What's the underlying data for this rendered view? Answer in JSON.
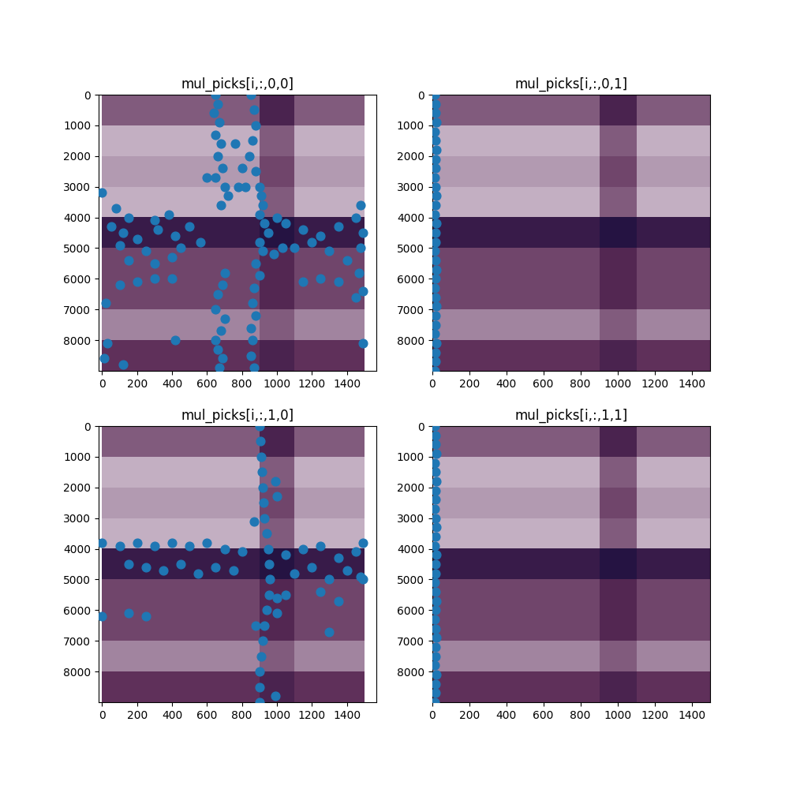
{
  "chart_data": [
    {
      "type": "scatter",
      "title": "mul_picks[i,:,0,0]",
      "color": "#1f77b4",
      "marker": "o",
      "x": [
        650,
        660,
        640,
        670,
        650,
        680,
        660,
        690,
        650,
        700,
        720,
        680,
        700,
        690,
        660,
        650,
        700,
        680,
        650,
        660,
        690,
        670,
        850,
        870,
        880,
        860,
        840,
        880,
        900,
        910,
        920,
        900,
        930,
        950,
        900,
        920,
        880,
        900,
        870,
        860,
        880,
        850,
        860,
        850,
        870,
        760,
        780,
        820,
        600,
        800,
        0,
        80,
        150,
        300,
        380,
        50,
        120,
        200,
        320,
        420,
        500,
        560,
        450,
        250,
        100,
        400,
        150,
        300,
        1050,
        1150,
        1250,
        1350,
        1450,
        1480,
        1490,
        1480,
        1470,
        1490,
        1200,
        1100,
        1300,
        1400,
        1150,
        1250,
        1350,
        1450,
        200,
        300,
        100,
        400,
        20,
        30,
        10,
        120,
        420,
        1490,
        1030,
        980,
        1000
      ],
      "y": [
        0,
        300,
        600,
        900,
        1300,
        1600,
        2000,
        2400,
        2700,
        3000,
        3300,
        3600,
        5800,
        6200,
        6500,
        7000,
        7300,
        7700,
        8000,
        8300,
        8600,
        8900,
        0,
        500,
        1000,
        1500,
        2000,
        2500,
        3000,
        3300,
        3600,
        3900,
        4200,
        4500,
        4800,
        5100,
        5500,
        5900,
        6300,
        6800,
        7200,
        7600,
        8000,
        8500,
        8900,
        1600,
        3000,
        3000,
        2700,
        2400,
        3200,
        3700,
        4000,
        4100,
        3900,
        4300,
        4500,
        4700,
        4400,
        4600,
        4300,
        4800,
        5000,
        5100,
        4900,
        5300,
        5400,
        5500,
        4200,
        4400,
        4600,
        4300,
        4000,
        3600,
        4500,
        5000,
        5800,
        6400,
        4800,
        5000,
        5100,
        5400,
        6100,
        6000,
        6100,
        6600,
        6100,
        6000,
        6200,
        6000,
        6800,
        8100,
        8600,
        8800,
        8000,
        8100,
        5000,
        5200,
        4000
      ],
      "xlim": [
        -20,
        1570
      ],
      "ylim": [
        9000,
        0
      ],
      "xticks": [
        0,
        200,
        400,
        600,
        800,
        1000,
        1200,
        1400
      ],
      "yticks": [
        0,
        1000,
        2000,
        3000,
        4000,
        5000,
        6000,
        7000,
        8000
      ],
      "cells_x": [
        0,
        1500
      ],
      "cells_y": [
        0,
        9000
      ],
      "cells_range": [
        0,
        1
      ],
      "cells": [
        [
          0.55,
          0.55,
          0.55,
          0.55,
          0.55,
          0.55,
          0.55,
          0.55,
          0.55,
          0.75,
          0.75,
          0.55,
          0.55,
          0.55,
          0.55
        ],
        [
          0.35,
          0.35,
          0.35,
          0.35,
          0.35,
          0.35,
          0.35,
          0.35,
          0.35,
          0.55,
          0.55,
          0.35,
          0.35,
          0.35,
          0.35
        ],
        [
          0.4,
          0.4,
          0.4,
          0.4,
          0.4,
          0.4,
          0.4,
          0.4,
          0.4,
          0.6,
          0.6,
          0.4,
          0.4,
          0.4,
          0.4
        ],
        [
          0.35,
          0.35,
          0.35,
          0.35,
          0.35,
          0.35,
          0.35,
          0.35,
          0.35,
          0.55,
          0.55,
          0.35,
          0.35,
          0.35,
          0.35
        ],
        [
          0.85,
          0.85,
          0.85,
          0.85,
          0.85,
          0.85,
          0.85,
          0.85,
          0.85,
          0.95,
          0.95,
          0.85,
          0.85,
          0.85,
          0.85
        ],
        [
          0.6,
          0.6,
          0.6,
          0.6,
          0.6,
          0.6,
          0.6,
          0.6,
          0.6,
          0.7,
          0.7,
          0.6,
          0.6,
          0.6,
          0.6
        ],
        [
          0.6,
          0.6,
          0.6,
          0.6,
          0.6,
          0.6,
          0.6,
          0.6,
          0.6,
          0.7,
          0.7,
          0.6,
          0.6,
          0.6,
          0.6
        ],
        [
          0.45,
          0.45,
          0.45,
          0.45,
          0.45,
          0.45,
          0.45,
          0.45,
          0.45,
          0.55,
          0.55,
          0.45,
          0.45,
          0.45,
          0.45
        ],
        [
          0.65,
          0.65,
          0.65,
          0.65,
          0.65,
          0.65,
          0.65,
          0.65,
          0.65,
          0.75,
          0.75,
          0.65,
          0.65,
          0.65,
          0.65
        ]
      ]
    },
    {
      "type": "scatter",
      "title": "mul_picks[i,:,0,1]",
      "color": "#1f77b4",
      "marker": "o",
      "x": [
        15,
        20,
        18,
        22,
        16,
        19,
        21,
        17,
        20,
        15,
        18,
        22,
        19,
        16,
        21,
        20,
        17,
        15,
        19,
        22,
        18,
        16,
        20,
        21,
        17,
        19,
        15,
        22,
        18,
        20,
        16
      ],
      "y": [
        0,
        300,
        600,
        900,
        1200,
        1500,
        1800,
        2100,
        2400,
        2700,
        3000,
        3300,
        3600,
        3900,
        4200,
        4500,
        4800,
        5100,
        5400,
        5700,
        6000,
        6300,
        6600,
        6900,
        7200,
        7500,
        7800,
        8100,
        8400,
        8700,
        9000
      ],
      "xlim": [
        0,
        1500
      ],
      "ylim": [
        9000,
        0
      ],
      "xticks": [
        0,
        200,
        400,
        600,
        800,
        1000,
        1200,
        1400
      ],
      "yticks": [
        0,
        1000,
        2000,
        3000,
        4000,
        5000,
        6000,
        7000,
        8000
      ],
      "cells_x": [
        0,
        1500
      ],
      "cells_y": [
        0,
        9000
      ],
      "cells_range": [
        0,
        1
      ],
      "cells": [
        [
          0.55,
          0.55,
          0.55,
          0.55,
          0.55,
          0.55,
          0.55,
          0.55,
          0.55,
          0.75,
          0.75,
          0.55,
          0.55,
          0.55,
          0.55
        ],
        [
          0.35,
          0.35,
          0.35,
          0.35,
          0.35,
          0.35,
          0.35,
          0.35,
          0.35,
          0.55,
          0.55,
          0.35,
          0.35,
          0.35,
          0.35
        ],
        [
          0.4,
          0.4,
          0.4,
          0.4,
          0.4,
          0.4,
          0.4,
          0.4,
          0.4,
          0.6,
          0.6,
          0.4,
          0.4,
          0.4,
          0.4
        ],
        [
          0.35,
          0.35,
          0.35,
          0.35,
          0.35,
          0.35,
          0.35,
          0.35,
          0.35,
          0.55,
          0.55,
          0.35,
          0.35,
          0.35,
          0.35
        ],
        [
          0.85,
          0.85,
          0.85,
          0.85,
          0.85,
          0.85,
          0.85,
          0.85,
          0.85,
          0.95,
          0.95,
          0.85,
          0.85,
          0.85,
          0.85
        ],
        [
          0.6,
          0.6,
          0.6,
          0.6,
          0.6,
          0.6,
          0.6,
          0.6,
          0.6,
          0.7,
          0.7,
          0.6,
          0.6,
          0.6,
          0.6
        ],
        [
          0.6,
          0.6,
          0.6,
          0.6,
          0.6,
          0.6,
          0.6,
          0.6,
          0.6,
          0.7,
          0.7,
          0.6,
          0.6,
          0.6,
          0.6
        ],
        [
          0.45,
          0.45,
          0.45,
          0.45,
          0.45,
          0.45,
          0.45,
          0.45,
          0.45,
          0.55,
          0.55,
          0.45,
          0.45,
          0.45,
          0.45
        ],
        [
          0.65,
          0.65,
          0.65,
          0.65,
          0.65,
          0.65,
          0.65,
          0.65,
          0.65,
          0.75,
          0.75,
          0.65,
          0.65,
          0.65,
          0.65
        ]
      ]
    },
    {
      "type": "scatter",
      "title": "mul_picks[i,:,1,0]",
      "color": "#1f77b4",
      "marker": "o",
      "x": [
        900,
        905,
        910,
        915,
        920,
        925,
        930,
        940,
        950,
        955,
        960,
        955,
        940,
        930,
        920,
        910,
        900,
        900,
        900,
        870,
        990,
        1000,
        1000,
        880,
        990,
        0,
        100,
        200,
        300,
        400,
        500,
        600,
        700,
        800,
        150,
        250,
        350,
        450,
        550,
        650,
        750,
        1050,
        1150,
        1250,
        1350,
        1450,
        1490,
        1100,
        1200,
        1300,
        1400,
        1480,
        1050,
        1250,
        1350,
        1490,
        0,
        150,
        250,
        1300,
        1000
      ],
      "y": [
        0,
        500,
        1000,
        1500,
        2000,
        2500,
        3000,
        3500,
        4000,
        4500,
        5000,
        5500,
        6000,
        6500,
        7000,
        7500,
        8000,
        8500,
        9000,
        3100,
        1800,
        2300,
        6100,
        6500,
        8800,
        3800,
        3900,
        3800,
        3900,
        3800,
        3900,
        3800,
        4000,
        4100,
        4500,
        4600,
        4700,
        4500,
        4800,
        4600,
        4700,
        4200,
        4000,
        3900,
        4300,
        4100,
        3800,
        4800,
        4600,
        5000,
        4700,
        4900,
        5500,
        5400,
        5700,
        5000,
        6200,
        6100,
        6200,
        6700,
        5600
      ],
      "xlim": [
        -20,
        1570
      ],
      "ylim": [
        9000,
        0
      ],
      "xticks": [
        0,
        200,
        400,
        600,
        800,
        1000,
        1200,
        1400
      ],
      "yticks": [
        0,
        1000,
        2000,
        3000,
        4000,
        5000,
        6000,
        7000,
        8000
      ],
      "cells_x": [
        0,
        1500
      ],
      "cells_y": [
        0,
        9000
      ],
      "cells_range": [
        0,
        1
      ],
      "cells": [
        [
          0.55,
          0.55,
          0.55,
          0.55,
          0.55,
          0.55,
          0.55,
          0.55,
          0.55,
          0.75,
          0.75,
          0.55,
          0.55,
          0.55,
          0.55
        ],
        [
          0.35,
          0.35,
          0.35,
          0.35,
          0.35,
          0.35,
          0.35,
          0.35,
          0.35,
          0.55,
          0.55,
          0.35,
          0.35,
          0.35,
          0.35
        ],
        [
          0.4,
          0.4,
          0.4,
          0.4,
          0.4,
          0.4,
          0.4,
          0.4,
          0.4,
          0.6,
          0.6,
          0.4,
          0.4,
          0.4,
          0.4
        ],
        [
          0.35,
          0.35,
          0.35,
          0.35,
          0.35,
          0.35,
          0.35,
          0.35,
          0.35,
          0.55,
          0.55,
          0.35,
          0.35,
          0.35,
          0.35
        ],
        [
          0.85,
          0.85,
          0.85,
          0.85,
          0.85,
          0.85,
          0.85,
          0.85,
          0.85,
          0.95,
          0.95,
          0.85,
          0.85,
          0.85,
          0.85
        ],
        [
          0.6,
          0.6,
          0.6,
          0.6,
          0.6,
          0.6,
          0.6,
          0.6,
          0.6,
          0.7,
          0.7,
          0.6,
          0.6,
          0.6,
          0.6
        ],
        [
          0.6,
          0.6,
          0.6,
          0.6,
          0.6,
          0.6,
          0.6,
          0.6,
          0.6,
          0.7,
          0.7,
          0.6,
          0.6,
          0.6,
          0.6
        ],
        [
          0.45,
          0.45,
          0.45,
          0.45,
          0.45,
          0.45,
          0.45,
          0.45,
          0.45,
          0.55,
          0.55,
          0.45,
          0.45,
          0.45,
          0.45
        ],
        [
          0.65,
          0.65,
          0.65,
          0.65,
          0.65,
          0.65,
          0.65,
          0.65,
          0.65,
          0.75,
          0.75,
          0.65,
          0.65,
          0.65,
          0.65
        ]
      ]
    },
    {
      "type": "scatter",
      "title": "mul_picks[i,:,1,1]",
      "color": "#1f77b4",
      "marker": "o",
      "x": [
        15,
        20,
        18,
        22,
        16,
        19,
        21,
        17,
        20,
        15,
        18,
        22,
        19,
        16,
        21,
        20,
        17,
        15,
        19,
        22,
        18,
        16,
        20,
        21,
        17,
        19,
        15,
        22,
        18,
        20,
        16
      ],
      "y": [
        0,
        300,
        600,
        900,
        1200,
        1500,
        1800,
        2100,
        2400,
        2700,
        3000,
        3300,
        3600,
        3900,
        4200,
        4500,
        4800,
        5100,
        5400,
        5700,
        6000,
        6300,
        6600,
        6900,
        7200,
        7500,
        7800,
        8100,
        8400,
        8700,
        9000
      ],
      "xlim": [
        0,
        1500
      ],
      "ylim": [
        9000,
        0
      ],
      "xticks": [
        0,
        200,
        400,
        600,
        800,
        1000,
        1200,
        1400
      ],
      "yticks": [
        0,
        1000,
        2000,
        3000,
        4000,
        5000,
        6000,
        7000,
        8000
      ],
      "cells_x": [
        0,
        1500
      ],
      "cells_y": [
        0,
        9000
      ],
      "cells_range": [
        0,
        1
      ],
      "cells": [
        [
          0.55,
          0.55,
          0.55,
          0.55,
          0.55,
          0.55,
          0.55,
          0.55,
          0.55,
          0.75,
          0.75,
          0.55,
          0.55,
          0.55,
          0.55
        ],
        [
          0.35,
          0.35,
          0.35,
          0.35,
          0.35,
          0.35,
          0.35,
          0.35,
          0.35,
          0.55,
          0.55,
          0.35,
          0.35,
          0.35,
          0.35
        ],
        [
          0.4,
          0.4,
          0.4,
          0.4,
          0.4,
          0.4,
          0.4,
          0.4,
          0.4,
          0.6,
          0.6,
          0.4,
          0.4,
          0.4,
          0.4
        ],
        [
          0.35,
          0.35,
          0.35,
          0.35,
          0.35,
          0.35,
          0.35,
          0.35,
          0.35,
          0.55,
          0.55,
          0.35,
          0.35,
          0.35,
          0.35
        ],
        [
          0.85,
          0.85,
          0.85,
          0.85,
          0.85,
          0.85,
          0.85,
          0.85,
          0.85,
          0.95,
          0.95,
          0.85,
          0.85,
          0.85,
          0.85
        ],
        [
          0.6,
          0.6,
          0.6,
          0.6,
          0.6,
          0.6,
          0.6,
          0.6,
          0.6,
          0.7,
          0.7,
          0.6,
          0.6,
          0.6,
          0.6
        ],
        [
          0.6,
          0.6,
          0.6,
          0.6,
          0.6,
          0.6,
          0.6,
          0.6,
          0.6,
          0.7,
          0.7,
          0.6,
          0.6,
          0.6,
          0.6
        ],
        [
          0.45,
          0.45,
          0.45,
          0.45,
          0.45,
          0.45,
          0.45,
          0.45,
          0.45,
          0.55,
          0.55,
          0.45,
          0.45,
          0.45,
          0.45
        ],
        [
          0.65,
          0.65,
          0.65,
          0.65,
          0.65,
          0.65,
          0.65,
          0.65,
          0.65,
          0.75,
          0.75,
          0.65,
          0.65,
          0.65,
          0.65
        ]
      ]
    }
  ]
}
